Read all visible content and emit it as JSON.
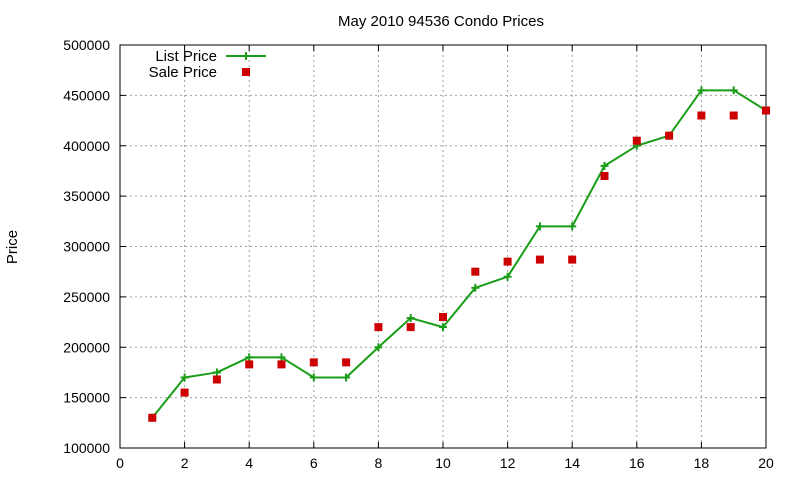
{
  "chart_data": {
    "type": "line",
    "title": "May 2010 94536 Condo Prices",
    "xlabel": "",
    "ylabel": "Price",
    "xlim": [
      0,
      20
    ],
    "ylim": [
      100000,
      500000
    ],
    "xticks": [
      0,
      2,
      4,
      6,
      8,
      10,
      12,
      14,
      16,
      18,
      20
    ],
    "yticks": [
      100000,
      150000,
      200000,
      250000,
      300000,
      350000,
      400000,
      450000,
      500000
    ],
    "grid": true,
    "legend_position": "top-left",
    "series": [
      {
        "name": "List Price",
        "style": "linespoints",
        "marker": "plus",
        "color": "#1a9e1a",
        "x": [
          1,
          2,
          3,
          4,
          5,
          6,
          7,
          8,
          9,
          10,
          11,
          12,
          13,
          14,
          15,
          16,
          17,
          18,
          19,
          20
        ],
        "y": [
          130000,
          170000,
          175000,
          190000,
          190000,
          170000,
          170000,
          200000,
          229000,
          220000,
          259000,
          270000,
          320000,
          320000,
          380000,
          400000,
          410000,
          455000,
          455000,
          435000
        ]
      },
      {
        "name": "Sale Price",
        "style": "points",
        "marker": "square",
        "color": "#cc0000",
        "x": [
          1,
          2,
          3,
          4,
          5,
          6,
          7,
          8,
          9,
          10,
          11,
          12,
          13,
          14,
          15,
          16,
          17,
          18,
          19,
          20
        ],
        "y": [
          130000,
          155000,
          168000,
          183000,
          183000,
          185000,
          185000,
          220000,
          220000,
          230000,
          275000,
          285000,
          287000,
          287000,
          370000,
          405000,
          410000,
          430000,
          430000,
          435000
        ]
      }
    ]
  }
}
